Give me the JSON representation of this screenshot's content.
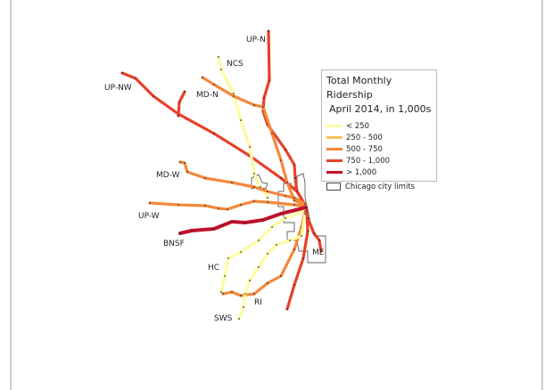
{
  "legend": {
    "title": "Total Monthly Ridership",
    "subtitle": "April 2014, in 1,000s",
    "classes": [
      {
        "label": "< 250",
        "color": "#fdfca0"
      },
      {
        "label": "250 - 500",
        "color": "#fdc15a"
      },
      {
        "label": "500 - 750",
        "color": "#f5883a"
      },
      {
        "label": "750 - 1,000",
        "color": "#e8402a"
      },
      {
        "label": "> 1,000",
        "color": "#c0102a"
      }
    ],
    "city_limits_label": "Chicago city limits"
  },
  "lines": [
    {
      "name": "UP-N",
      "class": 3
    },
    {
      "name": "UP-NW",
      "class": 3
    },
    {
      "name": "NCS",
      "class": 0
    },
    {
      "name": "MD-N",
      "class": 2
    },
    {
      "name": "MD-W",
      "class": 2
    },
    {
      "name": "UP-W",
      "class": 2
    },
    {
      "name": "BNSF",
      "class": 4
    },
    {
      "name": "HC",
      "class": 0
    },
    {
      "name": "RI",
      "class": 2
    },
    {
      "name": "SWS",
      "class": 0
    },
    {
      "name": "ME",
      "class": 3
    }
  ]
}
